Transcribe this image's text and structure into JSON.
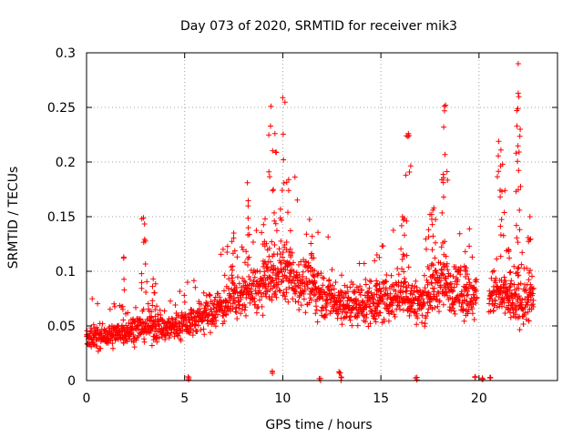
{
  "chart_data": {
    "type": "scatter",
    "title": "Day 073 of 2020, SRMTID for receiver mik3",
    "xlabel": "GPS time / hours",
    "ylabel": "SRMTID / TECUs",
    "xlim": [
      0,
      24
    ],
    "ylim": [
      0,
      0.3
    ],
    "xticks": [
      0,
      5,
      10,
      15,
      20
    ],
    "xtick_labels": [
      "0",
      "5",
      "10",
      "15",
      "20"
    ],
    "yticks": [
      0,
      0.05,
      0.1,
      0.15,
      0.2,
      0.25,
      0.3
    ],
    "ytick_labels": [
      "0",
      "0.05",
      "0.1",
      "0.15",
      "0.2",
      "0.25",
      "0.3"
    ],
    "grid": true,
    "marker": "+",
    "color": "#ff0000",
    "series": [
      {
        "name": "SRMTID",
        "trend": [
          [
            0.0,
            0.04
          ],
          [
            1.0,
            0.04
          ],
          [
            2.0,
            0.045
          ],
          [
            3.0,
            0.05
          ],
          [
            4.0,
            0.048
          ],
          [
            5.0,
            0.052
          ],
          [
            6.0,
            0.06
          ],
          [
            7.0,
            0.07
          ],
          [
            8.0,
            0.08
          ],
          [
            9.0,
            0.085
          ],
          [
            9.5,
            0.095
          ],
          [
            10.0,
            0.1
          ],
          [
            11.0,
            0.09
          ],
          [
            12.0,
            0.08
          ],
          [
            13.0,
            0.07
          ],
          [
            14.0,
            0.07
          ],
          [
            15.0,
            0.072
          ],
          [
            16.0,
            0.08
          ],
          [
            17.0,
            0.07
          ],
          [
            18.0,
            0.09
          ],
          [
            19.0,
            0.08
          ],
          [
            19.8,
            0.075
          ],
          [
            20.8,
            0.08
          ],
          [
            22.0,
            0.07
          ],
          [
            22.8,
            0.075
          ]
        ],
        "peaks": [
          [
            1.9,
            0.113
          ],
          [
            2.9,
            0.149
          ],
          [
            3.4,
            0.093
          ],
          [
            7.5,
            0.135
          ],
          [
            8.2,
            0.181
          ],
          [
            9.1,
            0.148
          ],
          [
            9.4,
            0.251
          ],
          [
            9.6,
            0.226
          ],
          [
            10.0,
            0.259
          ],
          [
            10.3,
            0.184
          ],
          [
            11.5,
            0.132
          ],
          [
            14.8,
            0.115
          ],
          [
            16.1,
            0.15
          ],
          [
            16.4,
            0.226
          ],
          [
            17.5,
            0.152
          ],
          [
            17.7,
            0.158
          ],
          [
            18.2,
            0.232
          ],
          [
            18.3,
            0.252
          ],
          [
            19.3,
            0.118
          ],
          [
            21.0,
            0.219
          ],
          [
            21.2,
            0.198
          ],
          [
            21.5,
            0.12
          ],
          [
            22.0,
            0.263
          ],
          [
            22.0,
            0.29
          ],
          [
            22.1,
            0.23
          ],
          [
            22.6,
            0.15
          ]
        ],
        "near_zero": [
          [
            5.2,
            0.0
          ],
          [
            9.5,
            0.005
          ],
          [
            11.9,
            0.0
          ],
          [
            12.9,
            0.005
          ],
          [
            13.0,
            0.0
          ],
          [
            16.8,
            0.0
          ],
          [
            19.8,
            0.0
          ],
          [
            20.2,
            0.0
          ],
          [
            20.6,
            0.0
          ]
        ],
        "data_gaps_hours": [
          [
            19.9,
            20.5
          ]
        ]
      }
    ]
  }
}
